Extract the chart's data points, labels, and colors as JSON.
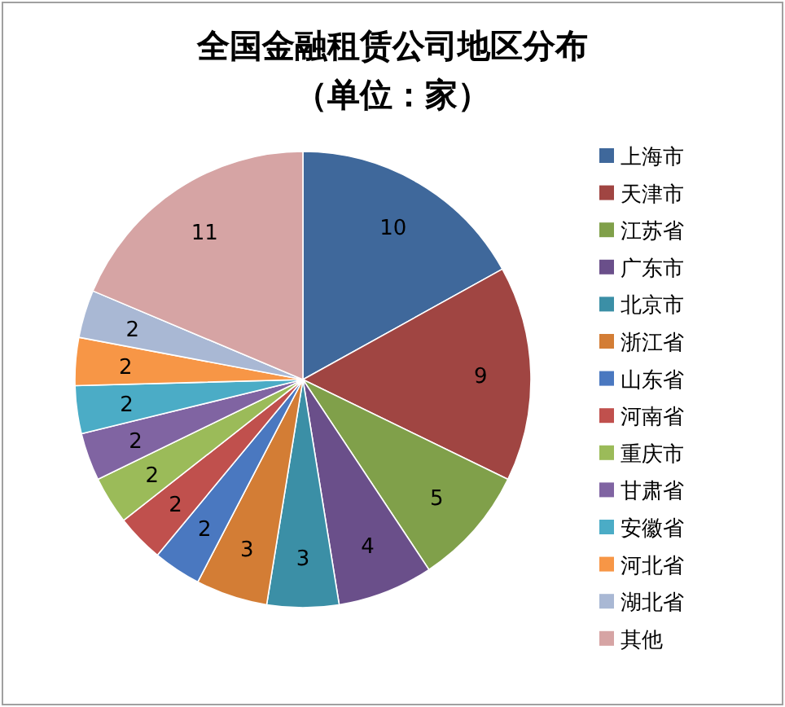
{
  "chart_data": {
    "type": "pie",
    "title": "全国金融租赁公司地区分布",
    "subtitle": "（单位：家）",
    "categories": [
      "上海市",
      "天津市",
      "江苏省",
      "广东市",
      "北京市",
      "浙江省",
      "山东省",
      "河南省",
      "重庆市",
      "甘肃省",
      "安徽省",
      "河北省",
      "湖北省",
      "其他"
    ],
    "values": [
      10,
      9,
      5,
      4,
      3,
      3,
      2,
      2,
      2,
      2,
      2,
      2,
      2,
      11
    ],
    "colors": [
      "#3f689b",
      "#a04542",
      "#80a04a",
      "#6a4f8a",
      "#3b8fa6",
      "#d37d35",
      "#4a78c0",
      "#c0504d",
      "#9bbb59",
      "#8064a2",
      "#4bacc6",
      "#f79646",
      "#a9b8d4",
      "#d6a4a4"
    ],
    "data_labels": true,
    "legend": "right"
  }
}
